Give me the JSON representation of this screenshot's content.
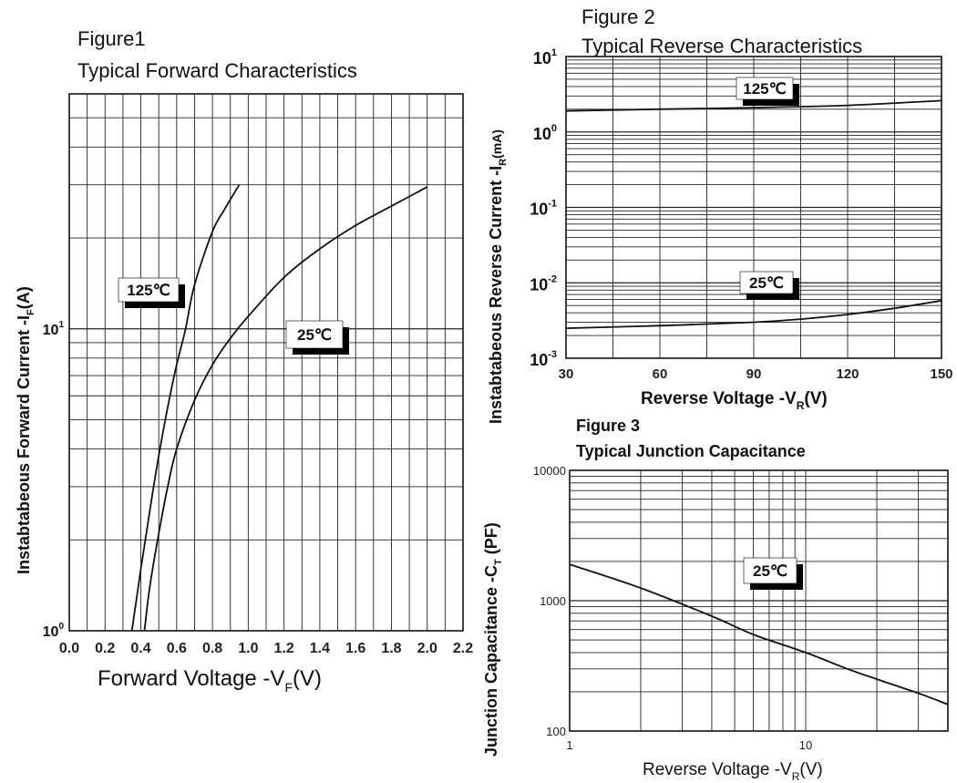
{
  "figures": [
    {
      "figure_label": "Figure1",
      "title": "Typical Forward Characteristics",
      "ylabel_main": "Instabtabeous Forward Current -I",
      "ylabel_sub": "F",
      "ylabel_unit": "(A)",
      "xlabel_main": "Forward Voltage -V",
      "xlabel_sub": "F",
      "xlabel_unit": "(V)"
    },
    {
      "figure_label": "Figure 2",
      "title": "Typical Reverse Characteristics",
      "ylabel_main": "Instabtabeous Reverse Current -I",
      "ylabel_sub": "R",
      "ylabel_unit": "(mA)",
      "xlabel_main": "Reverse  Voltage -V",
      "xlabel_sub": "R",
      "xlabel_unit": "(V)"
    },
    {
      "figure_label": "Figure 3",
      "title": "Typical Junction Capacitance",
      "ylabel_main": "Junction Capacitance -C",
      "ylabel_sub": "T",
      "ylabel_unit": " (PF)",
      "xlabel_main": "Reverse Voltage -V",
      "xlabel_sub": "R",
      "xlabel_unit": "(V)"
    }
  ],
  "chart_data": [
    {
      "type": "line",
      "title": "Typical Forward Characteristics",
      "xlabel": "Forward Voltage -VF(V)",
      "ylabel": "Instabtabeous Forward Current -IF(A)",
      "x_scale": "linear",
      "y_scale": "log",
      "xlim": [
        0,
        2.2
      ],
      "ylim": [
        1,
        60
      ],
      "grid": true,
      "x_ticks": [
        "0.0",
        "0.2",
        "0.4",
        "0.6",
        "0.8",
        "1.0",
        "1.2",
        "1.4",
        "1.6",
        "1.8",
        "2.0",
        "2.2"
      ],
      "y_ticks": [
        {
          "base": "10",
          "exp": "0",
          "value": 1
        },
        {
          "base": "10",
          "exp": "1",
          "value": 10
        }
      ],
      "series": [
        {
          "name": "125℃",
          "x": [
            0.35,
            0.4,
            0.45,
            0.5,
            0.55,
            0.6,
            0.65,
            0.7,
            0.8,
            0.87,
            0.95
          ],
          "y": [
            1.0,
            1.6,
            2.5,
            3.8,
            5.5,
            7.6,
            10,
            14,
            21,
            25,
            30
          ]
        },
        {
          "name": "25℃",
          "x": [
            0.42,
            0.45,
            0.5,
            0.55,
            0.6,
            0.7,
            0.8,
            0.9,
            1.0,
            1.2,
            1.4,
            1.6,
            1.8,
            2.0
          ],
          "y": [
            1.0,
            1.4,
            2.1,
            3.0,
            4.0,
            5.8,
            7.6,
            9.3,
            11,
            14.8,
            18.4,
            22,
            25.5,
            29.5
          ]
        }
      ],
      "annotations": [
        "125℃",
        "25℃"
      ]
    },
    {
      "type": "line",
      "title": "Typical Reverse Characteristics",
      "xlabel": "Reverse  Voltage -VR(V)",
      "ylabel": "Instabtabeous Reverse Current -IR(mA)",
      "x_scale": "linear",
      "y_scale": "log",
      "xlim": [
        30,
        150
      ],
      "ylim": [
        0.001,
        10
      ],
      "grid": true,
      "x_ticks": [
        "30",
        "60",
        "90",
        "120",
        "150"
      ],
      "y_ticks": [
        {
          "base": "10",
          "exp": "1",
          "value": 10
        },
        {
          "base": "10",
          "exp": "0",
          "value": 1
        },
        {
          "base": "10",
          "exp": "-1",
          "value": 0.1
        },
        {
          "base": "10",
          "exp": "-2",
          "value": 0.01
        },
        {
          "base": "10",
          "exp": "-3",
          "value": 0.001
        }
      ],
      "series": [
        {
          "name": "125℃",
          "x": [
            30,
            60,
            90,
            120,
            150
          ],
          "y": [
            1.9,
            2.0,
            2.1,
            2.25,
            2.6
          ]
        },
        {
          "name": "25℃",
          "x": [
            30,
            60,
            90,
            105,
            120,
            135,
            150
          ],
          "y": [
            0.0025,
            0.0027,
            0.003,
            0.0033,
            0.0038,
            0.0046,
            0.0058
          ]
        }
      ],
      "annotations": [
        "125℃",
        "25℃"
      ]
    },
    {
      "type": "line",
      "title": "Typical Junction Capacitance",
      "xlabel": "Reverse Voltage -VR(V)",
      "ylabel": "Junction Capacitance -CT (PF)",
      "x_scale": "log",
      "y_scale": "log",
      "xlim": [
        1,
        40
      ],
      "ylim": [
        100,
        10000
      ],
      "grid": true,
      "x_ticks": [
        "1",
        "10"
      ],
      "y_ticks": [
        "10000",
        "1000",
        "100"
      ],
      "series": [
        {
          "name": "25℃",
          "x": [
            1,
            2,
            4,
            6,
            10,
            15,
            20,
            30,
            40
          ],
          "y": [
            1900,
            1250,
            760,
            550,
            400,
            300,
            250,
            195,
            160
          ]
        }
      ],
      "annotations": [
        "25℃"
      ]
    }
  ]
}
